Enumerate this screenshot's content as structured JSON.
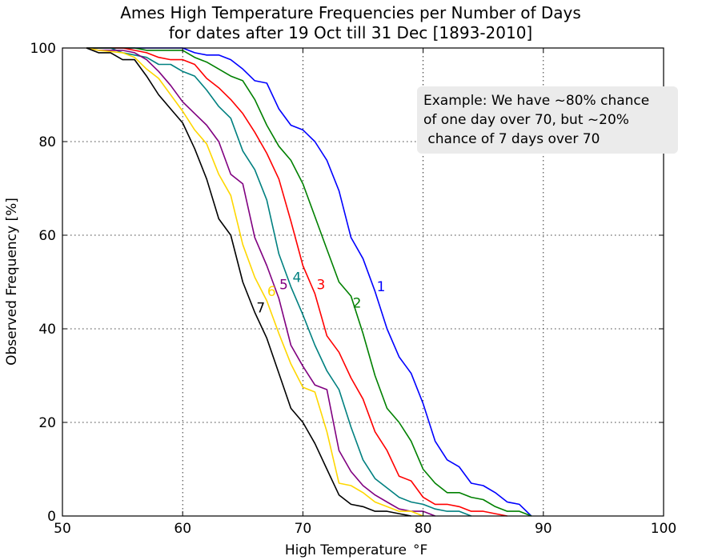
{
  "chart_data": {
    "type": "line",
    "title_lines": [
      "Ames High Temperature Frequencies per Number of Days",
      "for dates after 19 Oct till 31 Dec [1893-2010]"
    ],
    "xlabel": "High Temperature",
    "xlabel_unit": "°F",
    "ylabel": "Observed Frequency [%]",
    "xlim": [
      50,
      100
    ],
    "ylim": [
      0,
      100
    ],
    "xticks": [
      50,
      60,
      70,
      80,
      90,
      100
    ],
    "yticks": [
      0,
      20,
      40,
      60,
      80,
      100
    ],
    "grid": true,
    "annotation_lines": [
      "Example: We have ~80% chance",
      "of one day over 70, but ~20%",
      " chance of 7 days over 70"
    ],
    "annotation_position": "top-right",
    "series": [
      {
        "name": "1",
        "color": "#0000ff",
        "label_pos": [
          76.5,
          48
        ],
        "points": [
          [
            52,
            100
          ],
          [
            60,
            100
          ],
          [
            61,
            99
          ],
          [
            62,
            98.5
          ],
          [
            63,
            98.5
          ],
          [
            64,
            97.5
          ],
          [
            65,
            95.5
          ],
          [
            66,
            93
          ],
          [
            67,
            92.5
          ],
          [
            68,
            87
          ],
          [
            69,
            83.5
          ],
          [
            70,
            82.5
          ],
          [
            71,
            80
          ],
          [
            72,
            76
          ],
          [
            73,
            69.5
          ],
          [
            74,
            59.5
          ],
          [
            75,
            55
          ],
          [
            76,
            48
          ],
          [
            77,
            40
          ],
          [
            78,
            34
          ],
          [
            79,
            30.5
          ],
          [
            80,
            24
          ],
          [
            81,
            16
          ],
          [
            82,
            12
          ],
          [
            83,
            10.5
          ],
          [
            84,
            7
          ],
          [
            85,
            6.5
          ],
          [
            86,
            5
          ],
          [
            87,
            3
          ],
          [
            88,
            2.5
          ],
          [
            89,
            0
          ]
        ]
      },
      {
        "name": "2",
        "color": "#008000",
        "label_pos": [
          74.5,
          44.5
        ],
        "points": [
          [
            52,
            100
          ],
          [
            56,
            100
          ],
          [
            57,
            99.5
          ],
          [
            60,
            99.5
          ],
          [
            61,
            98
          ],
          [
            62,
            97
          ],
          [
            63,
            95.5
          ],
          [
            64,
            94
          ],
          [
            65,
            93
          ],
          [
            66,
            89
          ],
          [
            67,
            83.5
          ],
          [
            68,
            79
          ],
          [
            69,
            76
          ],
          [
            70,
            71
          ],
          [
            71,
            64
          ],
          [
            72,
            57
          ],
          [
            73,
            50
          ],
          [
            74,
            47
          ],
          [
            75,
            39
          ],
          [
            76,
            30
          ],
          [
            77,
            23
          ],
          [
            78,
            20
          ],
          [
            79,
            16
          ],
          [
            80,
            10
          ],
          [
            81,
            7
          ],
          [
            82,
            5
          ],
          [
            83,
            5
          ],
          [
            84,
            4
          ],
          [
            85,
            3.5
          ],
          [
            86,
            2
          ],
          [
            87,
            1
          ],
          [
            88,
            1
          ],
          [
            89,
            0
          ]
        ]
      },
      {
        "name": "3",
        "color": "#ff0000",
        "label_pos": [
          71.5,
          48.5
        ],
        "points": [
          [
            52,
            100
          ],
          [
            55,
            100
          ],
          [
            56,
            99.5
          ],
          [
            57,
            99
          ],
          [
            58,
            98
          ],
          [
            59,
            97.5
          ],
          [
            60,
            97.5
          ],
          [
            61,
            96.5
          ],
          [
            62,
            93.5
          ],
          [
            63,
            91.5
          ],
          [
            64,
            89
          ],
          [
            65,
            86
          ],
          [
            66,
            82
          ],
          [
            67,
            77.5
          ],
          [
            68,
            72
          ],
          [
            69,
            63
          ],
          [
            70,
            53.5
          ],
          [
            71,
            47.5
          ],
          [
            72,
            38.5
          ],
          [
            73,
            35
          ],
          [
            74,
            29.5
          ],
          [
            75,
            25
          ],
          [
            76,
            18
          ],
          [
            77,
            14
          ],
          [
            78,
            8.5
          ],
          [
            79,
            7.5
          ],
          [
            80,
            4
          ],
          [
            81,
            2.5
          ],
          [
            82,
            2.5
          ],
          [
            83,
            2
          ],
          [
            84,
            1
          ],
          [
            85,
            1
          ],
          [
            86,
            0.5
          ],
          [
            87,
            0
          ]
        ]
      },
      {
        "name": "4",
        "color": "#008080",
        "label_pos": [
          69.5,
          50
        ],
        "points": [
          [
            52,
            100
          ],
          [
            54,
            100
          ],
          [
            55,
            99
          ],
          [
            56,
            98.5
          ],
          [
            57,
            98
          ],
          [
            58,
            96.5
          ],
          [
            59,
            96.5
          ],
          [
            60,
            95
          ],
          [
            61,
            94
          ],
          [
            62,
            91
          ],
          [
            63,
            87.5
          ],
          [
            64,
            85
          ],
          [
            65,
            78
          ],
          [
            66,
            74
          ],
          [
            67,
            67.5
          ],
          [
            68,
            56
          ],
          [
            69,
            49
          ],
          [
            70,
            43
          ],
          [
            71,
            36.5
          ],
          [
            72,
            31
          ],
          [
            73,
            27
          ],
          [
            74,
            19
          ],
          [
            75,
            12
          ],
          [
            76,
            8
          ],
          [
            77,
            6
          ],
          [
            78,
            4
          ],
          [
            79,
            3
          ],
          [
            80,
            2.5
          ],
          [
            81,
            1.5
          ],
          [
            82,
            1
          ],
          [
            83,
            1
          ],
          [
            84,
            0
          ]
        ]
      },
      {
        "name": "5",
        "color": "#800080",
        "label_pos": [
          68.4,
          48.5
        ],
        "points": [
          [
            52,
            100
          ],
          [
            53,
            99.5
          ],
          [
            55,
            99.5
          ],
          [
            56,
            99
          ],
          [
            57,
            97.5
          ],
          [
            58,
            95
          ],
          [
            59,
            92
          ],
          [
            60,
            88.5
          ],
          [
            61,
            86
          ],
          [
            62,
            83.5
          ],
          [
            63,
            80
          ],
          [
            64,
            73
          ],
          [
            65,
            71
          ],
          [
            66,
            59.5
          ],
          [
            67,
            53.5
          ],
          [
            68,
            46.5
          ],
          [
            69,
            36.5
          ],
          [
            70,
            32
          ],
          [
            71,
            28
          ],
          [
            72,
            27
          ],
          [
            73,
            14
          ],
          [
            74,
            9.5
          ],
          [
            75,
            6.5
          ],
          [
            76,
            4.5
          ],
          [
            77,
            3
          ],
          [
            78,
            1.5
          ],
          [
            79,
            1
          ],
          [
            80,
            1
          ],
          [
            81,
            0
          ]
        ]
      },
      {
        "name": "6",
        "color": "#ffd700",
        "label_pos": [
          67.4,
          47
        ],
        "points": [
          [
            52,
            100
          ],
          [
            53,
            99.5
          ],
          [
            55,
            99
          ],
          [
            56,
            98
          ],
          [
            57,
            95.5
          ],
          [
            58,
            93.5
          ],
          [
            59,
            90
          ],
          [
            60,
            86.5
          ],
          [
            61,
            82.5
          ],
          [
            62,
            79.5
          ],
          [
            63,
            73
          ],
          [
            64,
            68.5
          ],
          [
            65,
            58
          ],
          [
            66,
            51
          ],
          [
            67,
            46
          ],
          [
            68,
            39
          ],
          [
            69,
            32.5
          ],
          [
            70,
            27.5
          ],
          [
            71,
            26.5
          ],
          [
            72,
            18
          ],
          [
            73,
            7
          ],
          [
            74,
            6.5
          ],
          [
            75,
            5
          ],
          [
            76,
            3
          ],
          [
            77,
            2
          ],
          [
            78,
            1
          ],
          [
            79,
            1
          ],
          [
            80,
            0
          ]
        ]
      },
      {
        "name": "7",
        "color": "#000000",
        "label_pos": [
          66.5,
          43.5
        ],
        "points": [
          [
            52,
            100
          ],
          [
            53,
            99
          ],
          [
            54,
            99
          ],
          [
            55,
            97.5
          ],
          [
            56,
            97.5
          ],
          [
            57,
            94
          ],
          [
            58,
            90
          ],
          [
            59,
            87
          ],
          [
            60,
            84
          ],
          [
            61,
            78.5
          ],
          [
            62,
            72
          ],
          [
            63,
            63.5
          ],
          [
            64,
            60
          ],
          [
            65,
            50
          ],
          [
            66,
            43.5
          ],
          [
            67,
            38
          ],
          [
            68,
            30.5
          ],
          [
            69,
            23
          ],
          [
            70,
            20
          ],
          [
            71,
            15.5
          ],
          [
            72,
            10
          ],
          [
            73,
            4.5
          ],
          [
            74,
            2.5
          ],
          [
            75,
            2
          ],
          [
            76,
            1
          ],
          [
            77,
            1
          ],
          [
            78,
            0.5
          ],
          [
            79,
            0
          ]
        ]
      }
    ]
  }
}
